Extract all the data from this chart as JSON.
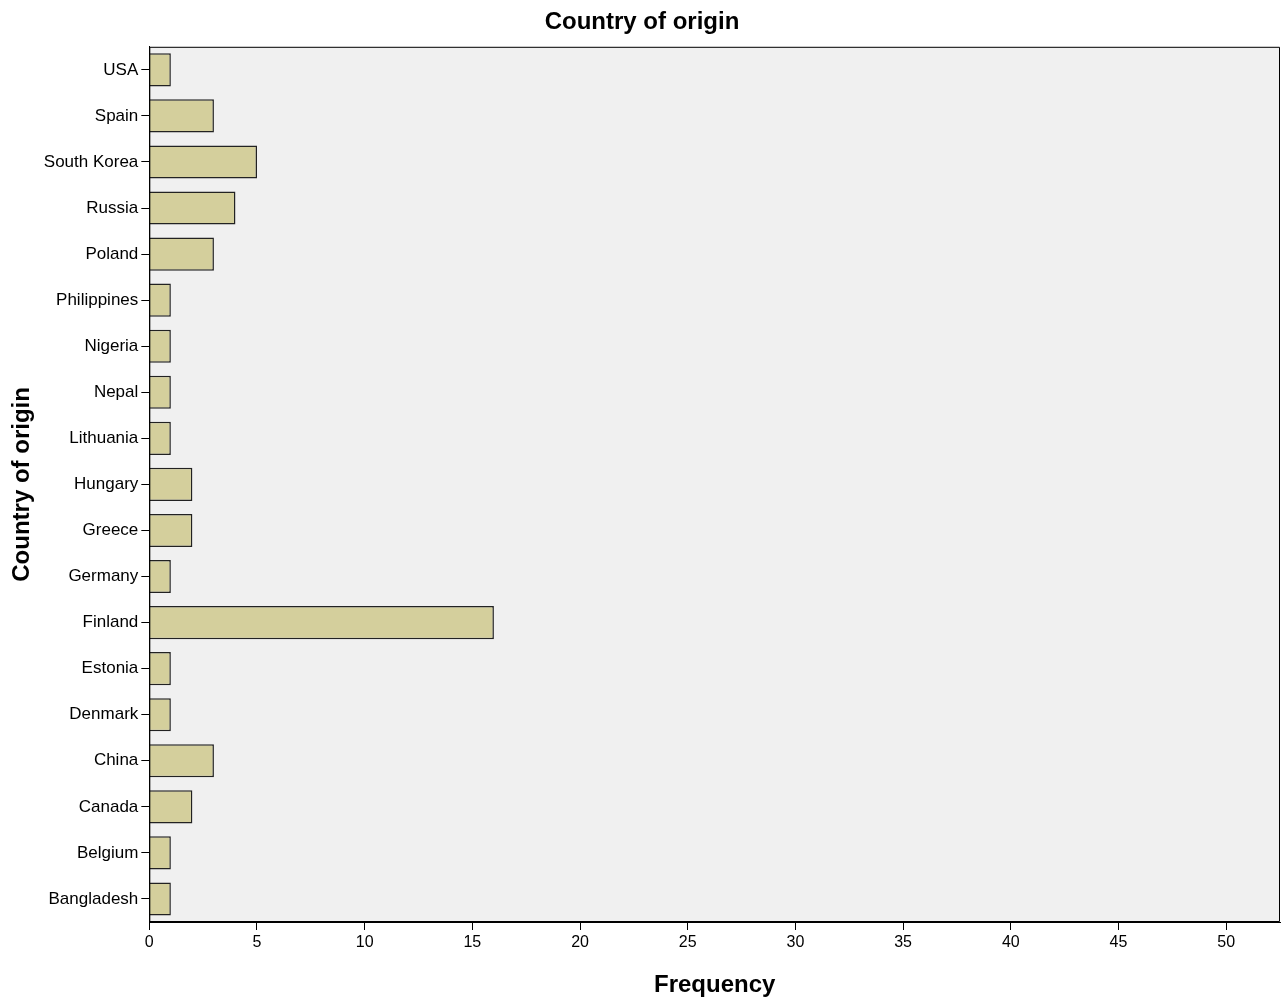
{
  "chart_data": {
    "type": "bar",
    "orientation": "horizontal",
    "title": "Country of origin",
    "xlabel": "Frequency",
    "ylabel": "Country of origin",
    "categories": [
      "USA",
      "Spain",
      "South Korea",
      "Russia",
      "Poland",
      "Philippines",
      "Nigeria",
      "Nepal",
      "Lithuania",
      "Hungary",
      "Greece",
      "Germany",
      "Finland",
      "Estonia",
      "Denmark",
      "China",
      "Canada",
      "Belgium",
      "Bangladesh"
    ],
    "values": [
      1,
      3,
      5,
      4,
      3,
      1,
      1,
      1,
      1,
      2,
      2,
      1,
      16,
      1,
      1,
      3,
      2,
      1,
      1
    ],
    "color": "#d4cf9c",
    "xlim": [
      0,
      52.5
    ],
    "xticks": [
      0,
      5,
      10,
      15,
      20,
      25,
      30,
      35,
      40,
      45,
      50
    ],
    "grid": false,
    "legend": false
  }
}
